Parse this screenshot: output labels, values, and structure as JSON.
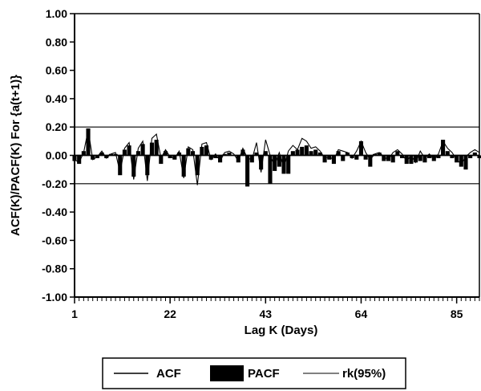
{
  "chart_data": {
    "type": "bar",
    "xlabel": "Lag K (Days)",
    "ylabel": "ACF(K)/PACF(K) For {a(t+1)}",
    "ylim": [
      -1.0,
      1.0
    ],
    "xlim": [
      1,
      90
    ],
    "y_ticks": [
      "1.00",
      "0.80",
      "0.60",
      "0.40",
      "0.20",
      "0.00",
      "-0.20",
      "-0.40",
      "-0.60",
      "-0.80",
      "-1.00"
    ],
    "x_ticks": [
      "1",
      "22",
      "43",
      "64",
      "85"
    ],
    "grid": false,
    "legend_position": "bottom",
    "legend": {
      "acf": "ACF",
      "pacf": "PACF",
      "rk": "rk(95%)"
    },
    "confidence_bounds": [
      0.2,
      -0.2
    ],
    "series": [
      {
        "name": "ACF",
        "kind": "line",
        "x": [
          1,
          2,
          3,
          4,
          5,
          6,
          7,
          8,
          9,
          10,
          11,
          12,
          13,
          14,
          15,
          16,
          17,
          18,
          19,
          20,
          21,
          22,
          23,
          24,
          25,
          26,
          27,
          28,
          29,
          30,
          31,
          32,
          33,
          34,
          35,
          36,
          37,
          38,
          39,
          40,
          41,
          42,
          43,
          44,
          45,
          46,
          47,
          48,
          49,
          50,
          51,
          52,
          53,
          54,
          55,
          56,
          57,
          58,
          59,
          60,
          61,
          62,
          63,
          64,
          65,
          66,
          67,
          68,
          69,
          70,
          71,
          72,
          73,
          74,
          75,
          76,
          77,
          78,
          79,
          80,
          81,
          82,
          83,
          84,
          85,
          86,
          87,
          88,
          89,
          90
        ],
        "values": [
          -0.03,
          -0.05,
          0.02,
          0.18,
          -0.03,
          -0.01,
          0.03,
          -0.02,
          0.01,
          0.02,
          -0.12,
          0.05,
          0.09,
          -0.17,
          0.05,
          0.1,
          -0.18,
          0.12,
          0.15,
          -0.02,
          0.04,
          -0.01,
          -0.02,
          0.03,
          -0.16,
          0.06,
          0.04,
          -0.21,
          0.08,
          0.09,
          -0.03,
          0.01,
          -0.04,
          0.02,
          0.03,
          0.01,
          -0.04,
          0.05,
          -0.02,
          -0.03,
          0.09,
          -0.12,
          0.11,
          0.0,
          -0.07,
          0.02,
          -0.09,
          0.03,
          0.07,
          0.04,
          0.12,
          0.1,
          0.05,
          0.06,
          0.03,
          -0.02,
          -0.01,
          -0.03,
          0.04,
          0.03,
          0.02,
          -0.02,
          0.03,
          0.1,
          0.02,
          -0.03,
          0.01,
          0.02,
          -0.01,
          -0.03,
          0.02,
          0.04,
          0.01,
          -0.04,
          0.0,
          -0.05,
          0.03,
          -0.02,
          0.01,
          -0.03,
          0.01,
          0.1,
          0.05,
          0.02,
          -0.03,
          -0.06,
          -0.01,
          0.02,
          0.04,
          0.02
        ]
      },
      {
        "name": "PACF",
        "kind": "bar",
        "x": [
          1,
          2,
          3,
          4,
          5,
          6,
          7,
          8,
          9,
          10,
          11,
          12,
          13,
          14,
          15,
          16,
          17,
          18,
          19,
          20,
          21,
          22,
          23,
          24,
          25,
          26,
          27,
          28,
          29,
          30,
          31,
          32,
          33,
          34,
          35,
          36,
          37,
          38,
          39,
          40,
          41,
          42,
          43,
          44,
          45,
          46,
          47,
          48,
          49,
          50,
          51,
          52,
          53,
          54,
          55,
          56,
          57,
          58,
          59,
          60,
          61,
          62,
          63,
          64,
          65,
          66,
          67,
          68,
          69,
          70,
          71,
          72,
          73,
          74,
          75,
          76,
          77,
          78,
          79,
          80,
          81,
          82,
          83,
          84,
          85,
          86,
          87,
          88,
          89,
          90
        ],
        "values": [
          -0.04,
          -0.06,
          0.03,
          0.19,
          -0.03,
          -0.02,
          0.02,
          -0.02,
          0.01,
          0.01,
          -0.14,
          0.04,
          0.07,
          -0.15,
          0.03,
          0.08,
          -0.14,
          0.09,
          0.11,
          -0.06,
          0.03,
          -0.02,
          -0.03,
          0.02,
          -0.15,
          0.05,
          0.03,
          -0.14,
          0.06,
          0.07,
          -0.03,
          -0.02,
          -0.05,
          0.01,
          0.02,
          0.0,
          -0.05,
          0.04,
          -0.22,
          -0.05,
          0.02,
          -0.1,
          0.03,
          -0.2,
          -0.11,
          -0.08,
          -0.13,
          -0.13,
          0.03,
          0.04,
          0.06,
          0.07,
          0.03,
          0.04,
          0.02,
          -0.05,
          -0.03,
          -0.06,
          0.03,
          -0.04,
          0.02,
          -0.02,
          -0.03,
          0.1,
          -0.03,
          -0.08,
          0.01,
          0.02,
          -0.04,
          -0.04,
          -0.05,
          0.03,
          -0.02,
          -0.06,
          -0.06,
          -0.05,
          -0.04,
          -0.05,
          -0.02,
          -0.04,
          -0.02,
          0.11,
          0.03,
          -0.02,
          -0.05,
          -0.08,
          -0.1,
          -0.02,
          0.02,
          -0.02
        ]
      }
    ]
  }
}
